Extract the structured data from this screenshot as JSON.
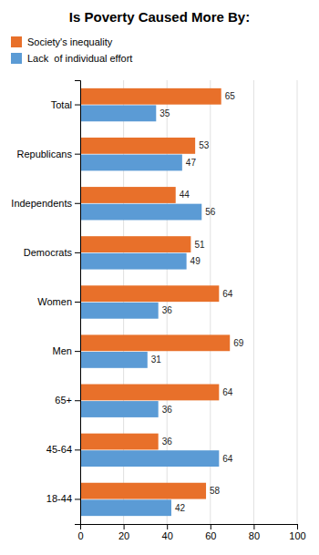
{
  "chart_data": {
    "type": "bar",
    "orientation": "horizontal",
    "title": "Is Poverty Caused More By:",
    "categories": [
      "Total",
      "Republicans",
      "Independents",
      "Democrats",
      "Women",
      "Men",
      "65+",
      "45-64",
      "18-44"
    ],
    "series": [
      {
        "name": "Society's inequality",
        "color": "#E8702A",
        "values": [
          65,
          53,
          44,
          51,
          64,
          69,
          64,
          36,
          58
        ]
      },
      {
        "name": "Lack  of individual effort",
        "color": "#5B9BD5",
        "values": [
          35,
          47,
          56,
          49,
          36,
          31,
          36,
          64,
          42
        ]
      }
    ],
    "xlim": [
      0,
      100
    ],
    "xticks": [
      0,
      20,
      40,
      60,
      80,
      100
    ],
    "grid": true,
    "data_labels": true,
    "legend": "top-left"
  }
}
